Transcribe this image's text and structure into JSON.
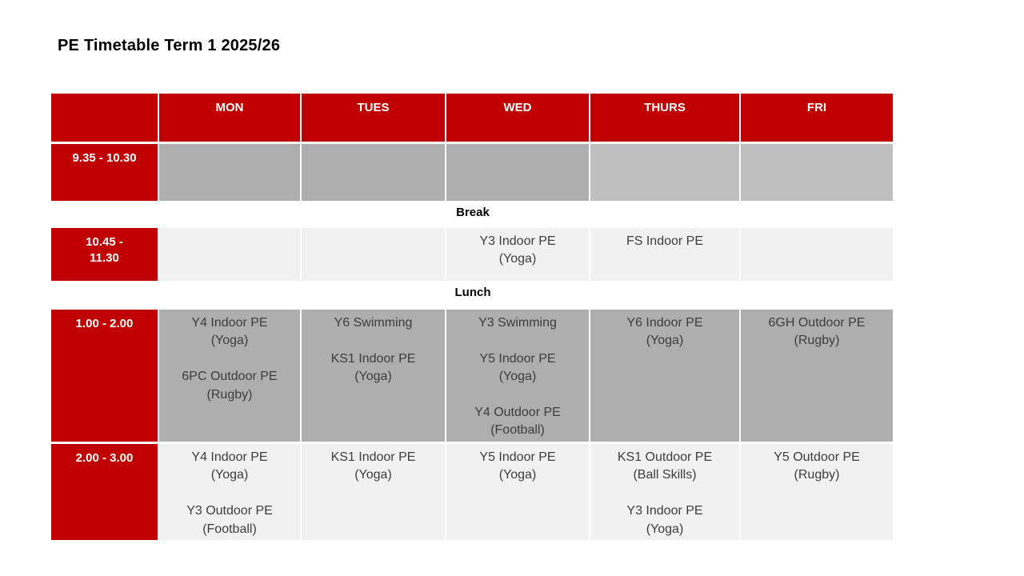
{
  "title": "PE Timetable Term 1 2025/26",
  "colors": {
    "accent_red": "#c00000",
    "cell_gray_dark": "#aeaeae",
    "cell_gray_light": "#bfbfbf",
    "cell_light": "#f1f1f1",
    "header_text": "#ffffff"
  },
  "timetable": {
    "days": [
      "MON",
      "TUES",
      "WED",
      "THURS",
      "FRI"
    ],
    "dividers": {
      "break": "Break",
      "lunch": "Lunch"
    },
    "rows": [
      {
        "time": "9.35 - 10.30",
        "cells": [
          "",
          "",
          "",
          "",
          ""
        ]
      },
      {
        "time": "10.45  -\n11.30",
        "cells": [
          "",
          "",
          "Y3 Indoor PE\n(Yoga)",
          "FS Indoor PE",
          ""
        ]
      },
      {
        "time": "1.00 - 2.00",
        "cells": [
          [
            "Y4 Indoor PE\n(Yoga)",
            "6PC Outdoor PE\n(Rugby)"
          ],
          [
            "Y6 Swimming",
            "KS1 Indoor PE\n(Yoga)"
          ],
          [
            "Y3 Swimming",
            "Y5 Indoor PE\n(Yoga)",
            "Y4 Outdoor PE\n(Football)"
          ],
          [
            "Y6 Indoor PE\n(Yoga)"
          ],
          [
            "6GH Outdoor PE\n(Rugby)"
          ]
        ]
      },
      {
        "time": "2.00 - 3.00",
        "cells": [
          [
            "Y4 Indoor PE\n(Yoga)",
            "Y3 Outdoor PE\n(Football)"
          ],
          [
            "KS1 Indoor PE\n(Yoga)"
          ],
          [
            "Y5 Indoor PE\n(Yoga)"
          ],
          [
            "KS1 Outdoor PE\n(Ball Skills)",
            "Y3 Indoor PE\n(Yoga)"
          ],
          [
            "Y5 Outdoor PE\n(Rugby)"
          ]
        ]
      }
    ]
  }
}
